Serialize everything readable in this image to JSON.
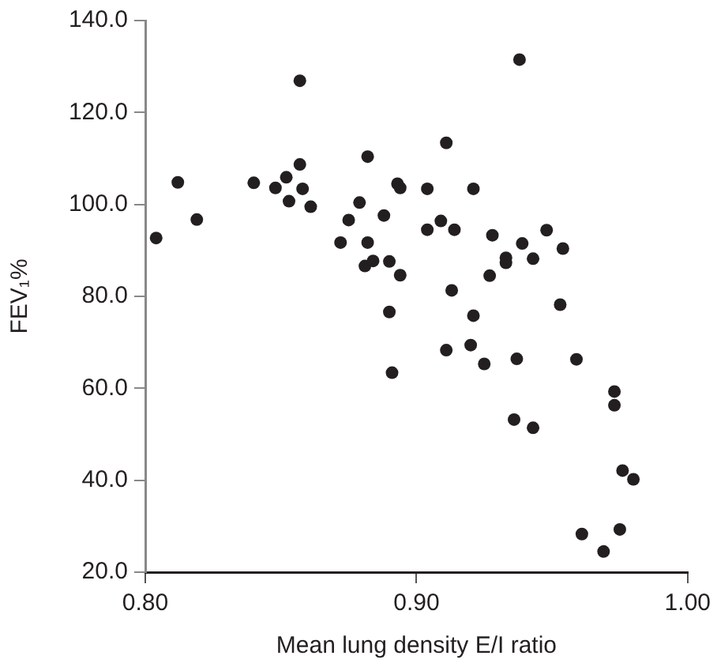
{
  "chart_data": {
    "type": "scatter",
    "xlabel": "Mean lung density E/I ratio",
    "ylabel": "FEV₁%",
    "marker": "circle",
    "grid": false,
    "legend": false,
    "xlim": [
      0.8,
      1.0
    ],
    "xticks": [
      {
        "value": 0.8,
        "label": "0.80"
      },
      {
        "value": 0.9,
        "label": "0.90"
      },
      {
        "value": 1.0,
        "label": "1.00"
      }
    ],
    "ylim": [
      20,
      140
    ],
    "yticks": [
      {
        "value": 20,
        "label": "20.0"
      },
      {
        "value": 40,
        "label": "40.0"
      },
      {
        "value": 60,
        "label": "60.0"
      },
      {
        "value": 80,
        "label": "80.0"
      },
      {
        "value": 100,
        "label": "100.0"
      },
      {
        "value": 120,
        "label": "120.0"
      },
      {
        "value": 140,
        "label": "140.0"
      }
    ],
    "series": [
      {
        "color": "#231f20",
        "x": [
          0.804,
          0.812,
          0.819,
          0.857,
          0.84,
          0.848,
          0.852,
          0.857,
          0.853,
          0.858,
          0.861,
          0.882,
          0.879,
          0.875,
          0.872,
          0.882,
          0.881,
          0.884,
          0.888,
          0.89,
          0.893,
          0.894,
          0.894,
          0.89,
          0.938,
          0.911,
          0.904,
          0.921,
          0.904,
          0.909,
          0.914,
          0.928,
          0.939,
          0.948,
          0.954,
          0.933,
          0.933,
          0.943,
          0.927,
          0.913,
          0.921,
          0.953,
          0.911,
          0.92,
          0.925,
          0.937,
          0.959,
          0.891,
          0.973,
          0.973,
          0.936,
          0.943,
          0.976,
          0.98,
          0.961,
          0.975,
          0.969
        ],
        "values": [
          92.7,
          104.8,
          96.7,
          126.9,
          104.7,
          103.6,
          105.9,
          108.7,
          100.7,
          103.4,
          99.5,
          110.4,
          100.4,
          96.6,
          91.7,
          91.7,
          86.6,
          87.7,
          97.6,
          87.6,
          104.5,
          103.6,
          84.6,
          76.6,
          131.5,
          113.4,
          103.4,
          103.4,
          94.5,
          96.4,
          94.5,
          93.3,
          91.5,
          94.4,
          90.4,
          88.4,
          87.3,
          88.2,
          84.5,
          81.3,
          75.8,
          78.2,
          68.3,
          69.4,
          65.3,
          66.4,
          66.3,
          63.4,
          59.3,
          56.3,
          53.2,
          51.4,
          42.1,
          40.2,
          28.3,
          29.3,
          24.5
        ]
      }
    ]
  }
}
